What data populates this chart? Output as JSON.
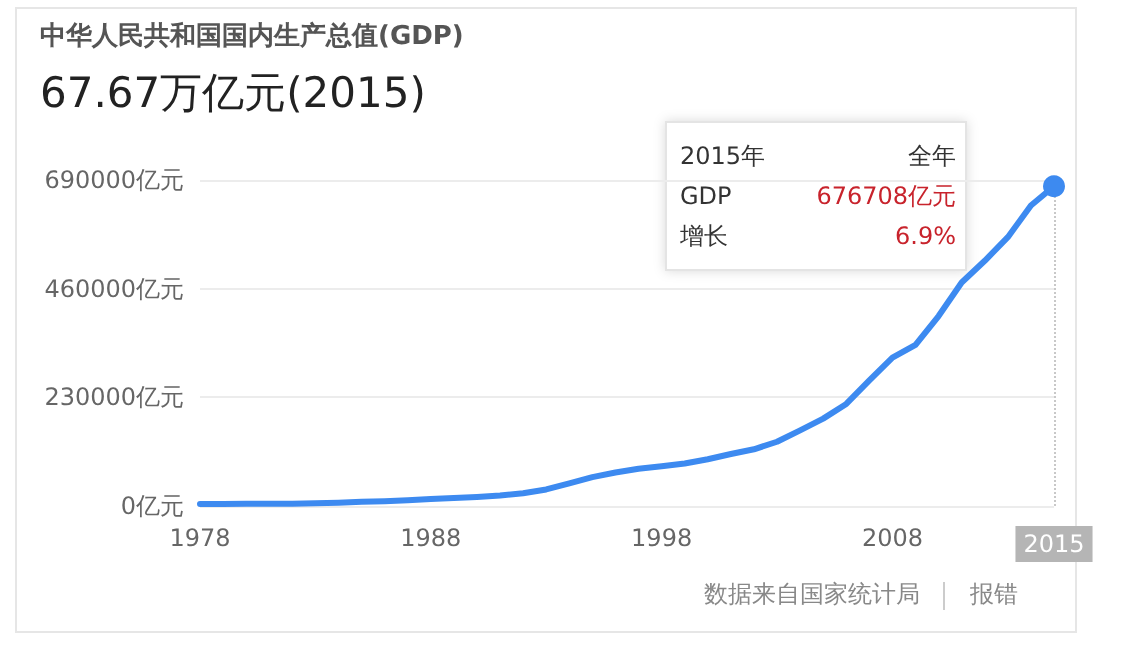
{
  "chart_data": {
    "type": "line",
    "title": "中华人民共和国国内生产总值(GDP)",
    "subtitle": "67.67万亿元(2015)",
    "x": [
      1978,
      1979,
      1980,
      1981,
      1982,
      1983,
      1984,
      1985,
      1986,
      1987,
      1988,
      1989,
      1990,
      1991,
      1992,
      1993,
      1994,
      1995,
      1996,
      1997,
      1998,
      1999,
      2000,
      2001,
      2002,
      2003,
      2004,
      2005,
      2006,
      2007,
      2008,
      2009,
      2010,
      2011,
      2012,
      2013,
      2014,
      2015
    ],
    "series": [
      {
        "color": "#3d8af0",
        "values": [
          4000,
          4000,
          5000,
          5000,
          5000,
          6000,
          7000,
          9000,
          10000,
          12000,
          15000,
          17000,
          19000,
          22000,
          27000,
          35000,
          48000,
          61000,
          71000,
          79000,
          84000,
          90000,
          99000,
          110000,
          120000,
          136000,
          160000,
          185000,
          216000,
          266000,
          314000,
          341000,
          402000,
          473000,
          519000,
          569000,
          636000,
          676708
        ]
      }
    ],
    "xlim": [
      1978,
      2015
    ],
    "xticks": [
      1978,
      1988,
      1998,
      2008,
      2015
    ],
    "ylim": [
      0,
      690000
    ],
    "yticks": [
      {
        "value": 0,
        "label": "0亿元"
      },
      {
        "value": 230000,
        "label": "230000亿元"
      },
      {
        "value": 460000,
        "label": "460000亿元"
      },
      {
        "value": 690000,
        "label": "690000亿元"
      }
    ],
    "grid": "y",
    "ref_lines": [
      {
        "axis": "x",
        "value": 2015,
        "color": "#c8c8c8",
        "line_style": "dotted"
      }
    ],
    "annotations": [
      "2015年",
      "全年",
      "GDP",
      "676708亿元",
      "增长",
      "6.9%",
      "数据来自国家统计局",
      "报错"
    ]
  }
}
